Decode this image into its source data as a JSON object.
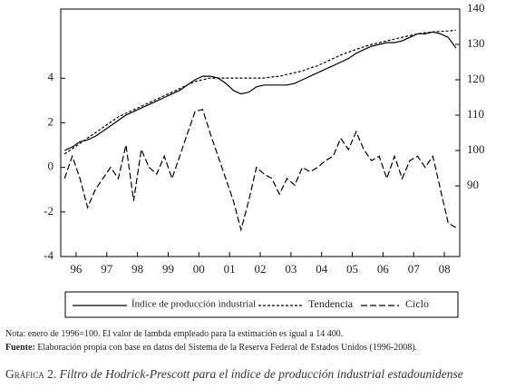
{
  "chart_data": {
    "type": "line",
    "x": [
      1996.125,
      1996.375,
      1996.625,
      1996.875,
      1997.125,
      1997.375,
      1997.625,
      1997.875,
      1998.125,
      1998.375,
      1998.625,
      1998.875,
      1999.125,
      1999.375,
      1999.625,
      1999.875,
      2000.125,
      2000.375,
      2000.625,
      2000.875,
      2001.125,
      2001.375,
      2001.625,
      2001.875,
      2002.125,
      2002.375,
      2002.625,
      2002.875,
      2003.125,
      2003.375,
      2003.625,
      2003.875,
      2004.125,
      2004.375,
      2004.625,
      2004.875,
      2005.125,
      2005.375,
      2005.625,
      2005.875,
      2006.125,
      2006.375,
      2006.625,
      2006.875,
      2007.125,
      2007.375,
      2007.625,
      2007.875,
      2008.125,
      2008.375,
      2008.625,
      2008.875
    ],
    "series": [
      {
        "name": "Índice de producción industrial",
        "color": "#000000",
        "dash": "none",
        "axis": "y2",
        "values": [
          100,
          101,
          102.5,
          103,
          104,
          105.5,
          107,
          108.5,
          110,
          111,
          112,
          113,
          114,
          115,
          116,
          117,
          118.5,
          120,
          121,
          121,
          120.5,
          119,
          117,
          116,
          116.5,
          118,
          118.5,
          118.5,
          118.5,
          118.5,
          119,
          120,
          121,
          122,
          123,
          124,
          125,
          126,
          127.5,
          128.5,
          129.5,
          130,
          130.5,
          130.5,
          131,
          132,
          133,
          133,
          133.5,
          133,
          132,
          129
        ]
      },
      {
        "name": "Tendencia",
        "color": "#000000",
        "dash": "3,2",
        "axis": "y2",
        "values": [
          99,
          100.5,
          102,
          103.5,
          105,
          106.5,
          108,
          109.5,
          110.5,
          111.5,
          112.5,
          113.5,
          114.5,
          115.5,
          116.5,
          117.5,
          118.5,
          119.5,
          120,
          120.5,
          120.5,
          120.5,
          120.5,
          120.5,
          120.5,
          120.5,
          120.5,
          120.8,
          121,
          121.5,
          122,
          122.5,
          123.3,
          124,
          125,
          126,
          127,
          127.8,
          128.6,
          129.3,
          130,
          130.5,
          131,
          131.5,
          132,
          132.5,
          133,
          133.3,
          133.5,
          133.7,
          133.8,
          134
        ]
      },
      {
        "name": "Ciclo",
        "color": "#000000",
        "dash": "7,3",
        "axis": "y",
        "values": [
          -0.5,
          0.5,
          -0.5,
          -1.8,
          -1,
          -0.5,
          0,
          -0.5,
          1,
          -1.5,
          0.8,
          0,
          -0.3,
          0.5,
          -0.5,
          0.5,
          1.5,
          2.5,
          2.6,
          1.5,
          0.5,
          -0.5,
          -1.5,
          -2.8,
          -1.5,
          0,
          -0.3,
          -0.5,
          -1.2,
          -0.5,
          -0.8,
          0,
          -0.2,
          0,
          0.3,
          0.5,
          1.3,
          0.8,
          1.6,
          0.8,
          0.3,
          0.5,
          -0.5,
          0.5,
          -0.5,
          0.3,
          0.5,
          0,
          0.5,
          -1,
          -2.5,
          -2.7
        ]
      }
    ],
    "xlim": [
      1996,
      2009
    ],
    "xticks": [
      {
        "value": 1996.5,
        "label": "96"
      },
      {
        "value": 1997.5,
        "label": "97"
      },
      {
        "value": 1998.5,
        "label": "98"
      },
      {
        "value": 1999.5,
        "label": "99"
      },
      {
        "value": 2000.5,
        "label": "00"
      },
      {
        "value": 2001.5,
        "label": "01"
      },
      {
        "value": 2002.5,
        "label": "02"
      },
      {
        "value": 2003.5,
        "label": "03"
      },
      {
        "value": 2004.5,
        "label": "04"
      },
      {
        "value": 2005.5,
        "label": "05"
      },
      {
        "value": 2006.5,
        "label": "06"
      },
      {
        "value": 2007.5,
        "label": "07"
      },
      {
        "value": 2008.5,
        "label": "08"
      }
    ],
    "ylim": [
      -4,
      7.1
    ],
    "yticks": [
      -4,
      -2,
      0,
      2,
      4
    ],
    "y2lim": [
      70,
      140
    ],
    "y2ticks": [
      90,
      100,
      110,
      120,
      130,
      140
    ],
    "grid": false
  },
  "notes": {
    "note": "Nota: enero de 1996=100. El valor de lambda empleado para la estimación es igual a 14 400.",
    "source_label": "Fuente:",
    "source_text": "Elaboración propia con base en datos del Sistema de la Reserva Federal de Estados Unidos (1996-2008)."
  },
  "caption": {
    "label": "Gráfica 2.",
    "text": "Filtro de Hodrick-Prescott para el índice de producción industrial estadounidense"
  }
}
